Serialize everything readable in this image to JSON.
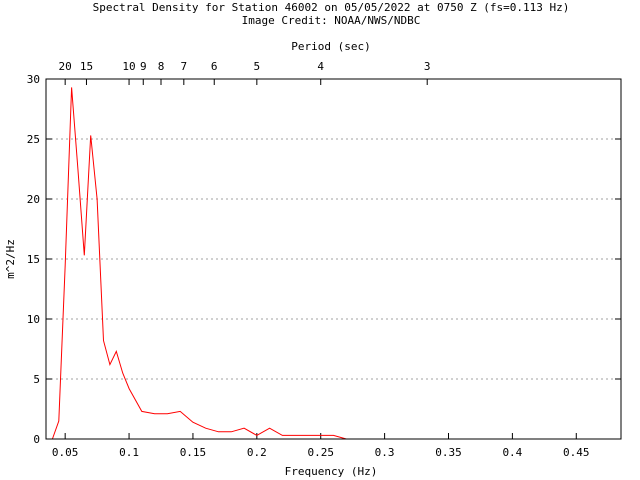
{
  "chart_data": {
    "type": "line",
    "title": "Spectral Density for Station 46002 on 05/05/2022 at 0750 Z (fs=0.113 Hz)",
    "subtitle": "Image Credit: NOAA/NWS/NDBC",
    "xlabel": "Frequency (Hz)",
    "ylabel": "m^2/Hz",
    "x2label": "Period (sec)",
    "xlim": [
      0.035,
      0.485
    ],
    "ylim": [
      0,
      30
    ],
    "x_ticks": [
      0.05,
      0.1,
      0.15,
      0.2,
      0.25,
      0.3,
      0.35,
      0.4,
      0.45
    ],
    "x_tick_labels": [
      "0.05",
      "0.1",
      "0.15",
      "0.2",
      "0.25",
      "0.3",
      "0.35",
      "0.4",
      "0.45"
    ],
    "y_ticks": [
      0,
      5,
      10,
      15,
      20,
      25,
      30
    ],
    "y_tick_labels": [
      "0",
      "5",
      "10",
      "15",
      "20",
      "25",
      "30"
    ],
    "period_ticks": [
      20,
      15,
      10,
      9,
      8,
      7,
      6,
      5,
      4,
      3
    ],
    "period_tick_labels": [
      "20",
      "15",
      "10",
      "9",
      "8",
      "7",
      "6",
      "5",
      "4",
      "3"
    ],
    "grid": "horizontal-dashed",
    "line_color": "#ff0000",
    "series": [
      {
        "x": [
          0.04,
          0.045,
          0.05,
          0.055,
          0.06,
          0.065,
          0.07,
          0.075,
          0.08,
          0.085,
          0.09,
          0.095,
          0.1,
          0.11,
          0.12,
          0.13,
          0.14,
          0.15,
          0.16,
          0.17,
          0.18,
          0.19,
          0.2,
          0.21,
          0.22,
          0.23,
          0.24,
          0.25,
          0.26,
          0.27
        ],
        "y": [
          0.0,
          1.5,
          14.5,
          29.3,
          22.5,
          15.3,
          25.3,
          20.0,
          8.2,
          6.2,
          7.3,
          5.5,
          4.2,
          2.3,
          2.1,
          2.1,
          2.3,
          1.4,
          0.9,
          0.6,
          0.6,
          0.9,
          0.3,
          0.9,
          0.3,
          0.3,
          0.3,
          0.3,
          0.3,
          0.0
        ]
      }
    ]
  }
}
